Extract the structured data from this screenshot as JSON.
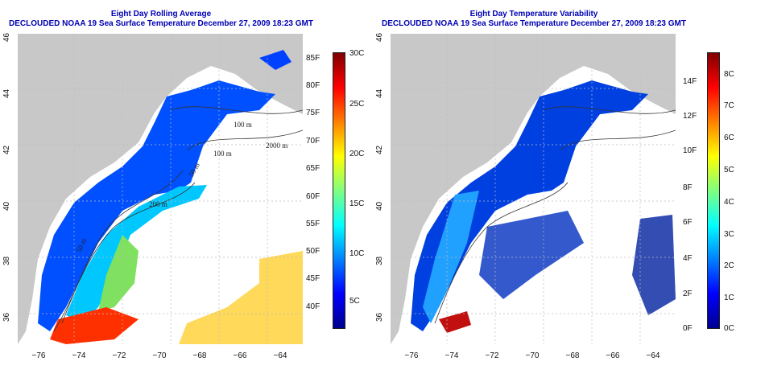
{
  "left_panel": {
    "title_line1": "Eight Day Rolling Average",
    "title_line2": "DECLOUDED NOAA 19 Sea Surface Temperature December 27, 2009 18:23 GMT",
    "colorbar_f_labels": [
      "85F",
      "80F",
      "75F",
      "70F",
      "65F",
      "60F",
      "55F",
      "50F",
      "45F",
      "40F"
    ],
    "colorbar_c_labels": [
      "30C",
      "25C",
      "20C",
      "15C",
      "10C",
      "5C"
    ]
  },
  "right_panel": {
    "title_line1": "Eight Day Temperature Variability",
    "title_line2": "DECLOUDED NOAA 19 Sea Surface Temperature December 27, 2009 18:23 GMT",
    "colorbar_f_labels": [
      "14F",
      "12F",
      "10F",
      "8F",
      "6F",
      "4F",
      "2F",
      "0F"
    ],
    "colorbar_c_labels": [
      "8C",
      "7C",
      "6C",
      "5C",
      "4C",
      "3C",
      "2C",
      "1C",
      "0C"
    ]
  },
  "axes": {
    "lat_labels": [
      "46",
      "44",
      "42",
      "40",
      "38",
      "36"
    ],
    "lon_labels": [
      "−76",
      "−74",
      "−72",
      "−70",
      "−68",
      "−66",
      "−64"
    ]
  },
  "contour_labels": [
    "100 m",
    "2000 m",
    "100 m",
    "50 m",
    "200 m",
    "50 m"
  ],
  "colors": {
    "land": "#c8c8c8",
    "title": "#0000b4",
    "colormap": [
      "#00008f",
      "#0000ff",
      "#0080ff",
      "#00ffff",
      "#80ff80",
      "#ffff00",
      "#ff8000",
      "#ff0000",
      "#800000"
    ]
  }
}
